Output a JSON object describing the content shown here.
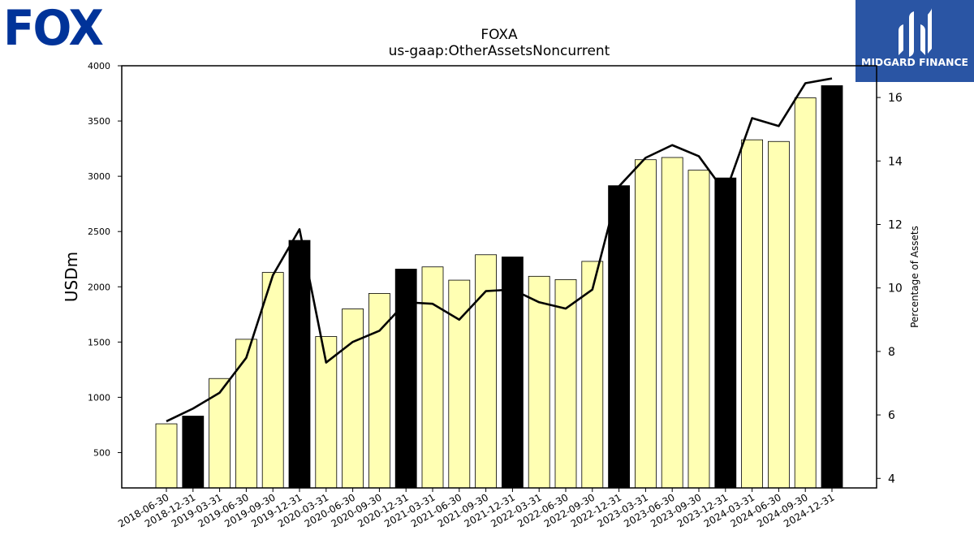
{
  "logos": {
    "left": "FOX",
    "right": "MIDGARD FINANCE"
  },
  "chart_data": {
    "type": "bar",
    "title": "FOXA",
    "subtitle": "us-gaap:OtherAssetsNoncurrent",
    "ylabel": "USDm",
    "y2label": "Percentage of Assets",
    "ylim": [
      180,
      4000
    ],
    "y2lim": [
      3.7,
      17.0
    ],
    "yticks": [
      500,
      1000,
      1500,
      2000,
      2500,
      3000,
      3500,
      4000
    ],
    "y2ticks": [
      4,
      6,
      8,
      10,
      12,
      14,
      16
    ],
    "categories": [
      "2018-06-30",
      "2018-12-31",
      "2019-03-31",
      "2019-06-30",
      "2019-09-30",
      "2019-12-31",
      "2020-03-31",
      "2020-06-30",
      "2020-09-30",
      "2020-12-31",
      "2021-03-31",
      "2021-06-30",
      "2021-09-30",
      "2021-12-31",
      "2022-03-31",
      "2022-06-30",
      "2022-09-30",
      "2022-12-31",
      "2023-03-31",
      "2023-06-30",
      "2023-09-30",
      "2023-12-31",
      "2024-03-31",
      "2024-06-30",
      "2024-09-30",
      "2024-12-31"
    ],
    "series": [
      {
        "type": "bar",
        "values": [
          760,
          830,
          1170,
          1525,
          2130,
          2420,
          1550,
          1800,
          1940,
          2160,
          2180,
          2060,
          2290,
          2270,
          2095,
          2065,
          2230,
          2915,
          3150,
          3170,
          3055,
          2985,
          3330,
          3315,
          3710,
          3820
        ],
        "highlight": [
          false,
          true,
          false,
          false,
          false,
          true,
          false,
          false,
          false,
          true,
          false,
          false,
          false,
          true,
          false,
          false,
          false,
          true,
          false,
          false,
          false,
          true,
          false,
          false,
          false,
          true
        ],
        "color": "#ffffb3",
        "highlight_color": "#000000"
      },
      {
        "type": "line",
        "axis": "right",
        "values": [
          5.8,
          6.2,
          6.7,
          7.8,
          10.4,
          11.85,
          7.65,
          8.3,
          8.65,
          9.55,
          9.5,
          9.0,
          9.9,
          9.95,
          9.55,
          9.35,
          9.95,
          13.2,
          14.1,
          14.5,
          14.15,
          13.0,
          15.35,
          15.1,
          16.45,
          16.6
        ],
        "color": "#000000"
      }
    ],
    "grid": false,
    "legend": "none"
  }
}
